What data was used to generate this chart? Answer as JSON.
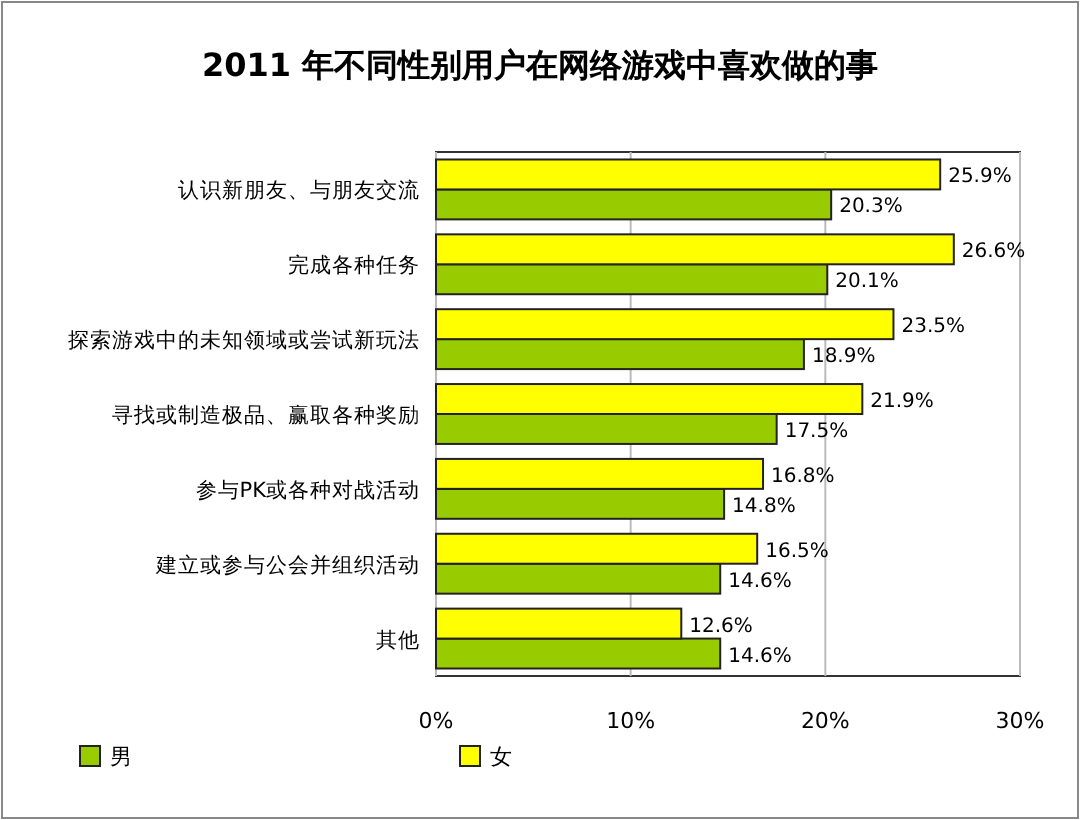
{
  "chart_data": {
    "type": "bar",
    "orientation": "horizontal",
    "title": "2011 年不同性别用户在网络游戏中喜欢做的事",
    "categories": [
      "认识新朋友、与朋友交流",
      "完成各种任务",
      "探索游戏中的未知领域或尝试新玩法",
      "寻找或制造极品、赢取各种奖励",
      "参与PK或各种对战活动",
      "建立或参与公会并组织活动",
      "其他"
    ],
    "series": [
      {
        "name": "男",
        "color": "#99cc00",
        "values": [
          20.3,
          20.1,
          18.9,
          17.5,
          14.8,
          14.6,
          14.6
        ],
        "value_labels": [
          "20.3%",
          "20.1%",
          "18.9%",
          "17.5%",
          "14.8%",
          "14.6%",
          "14.6%"
        ]
      },
      {
        "name": "女",
        "color": "#ffff00",
        "values": [
          25.9,
          26.6,
          23.5,
          21.9,
          16.8,
          16.5,
          12.6
        ],
        "value_labels": [
          "25.9%",
          "26.6%",
          "23.5%",
          "21.9%",
          "16.8%",
          "16.5%",
          "12.6%"
        ]
      }
    ],
    "xlim": [
      0,
      30
    ],
    "xticks": [
      {
        "value": 0,
        "label": "0%"
      },
      {
        "value": 10,
        "label": "10%"
      },
      {
        "value": 20,
        "label": "20%"
      },
      {
        "value": 30,
        "label": "30%"
      }
    ],
    "grid": "x",
    "legend": "bottom"
  }
}
